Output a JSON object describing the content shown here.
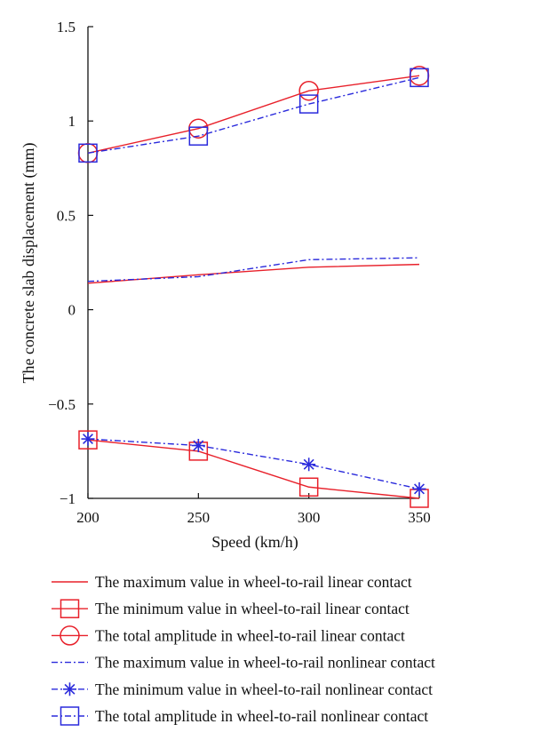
{
  "chart_data": {
    "type": "line",
    "x": [
      200,
      250,
      300,
      350
    ],
    "xlim": [
      200,
      350
    ],
    "ylim": [
      -1,
      1.5
    ],
    "xticks": [
      200,
      250,
      300,
      350
    ],
    "yticks": [
      -1,
      -0.5,
      0,
      0.5,
      1,
      1.5
    ],
    "xtick_labels": [
      "200",
      "250",
      "300",
      "350"
    ],
    "ytick_labels": [
      "−1",
      "−0.5",
      "0",
      "0.5",
      "1",
      "1.5"
    ],
    "xlabel": "Speed (km/h)",
    "ylabel": "The concrete slab displacement (mm)",
    "grid": false,
    "legend_position": "below",
    "series": [
      {
        "name": "The maximum value in wheel-to-rail linear contact",
        "values": [
          0.14,
          0.185,
          0.225,
          0.24
        ],
        "color": "#e8202a",
        "dash": "solid",
        "marker": "none"
      },
      {
        "name": "The minimum value in wheel-to-rail linear contact",
        "values": [
          -0.69,
          -0.75,
          -0.94,
          -1.0
        ],
        "color": "#e8202a",
        "dash": "solid",
        "marker": "square"
      },
      {
        "name": "The total amplitude in wheel-to-rail linear contact",
        "values": [
          0.83,
          0.96,
          1.16,
          1.24
        ],
        "color": "#e8202a",
        "dash": "solid",
        "marker": "circle"
      },
      {
        "name": "The maximum value in wheel-to-rail nonlinear contact",
        "values": [
          0.15,
          0.175,
          0.265,
          0.275
        ],
        "color": "#2a2adc",
        "dash": "dashdot",
        "marker": "none"
      },
      {
        "name": "The minimum value in wheel-to-rail nonlinear contact",
        "values": [
          -0.685,
          -0.72,
          -0.82,
          -0.95
        ],
        "color": "#2a2adc",
        "dash": "dashdot",
        "marker": "star"
      },
      {
        "name": "The total amplitude in wheel-to-rail nonlinear contact",
        "values": [
          0.83,
          0.92,
          1.09,
          1.23
        ],
        "color": "#2a2adc",
        "dash": "dashdot",
        "marker": "square"
      }
    ]
  }
}
